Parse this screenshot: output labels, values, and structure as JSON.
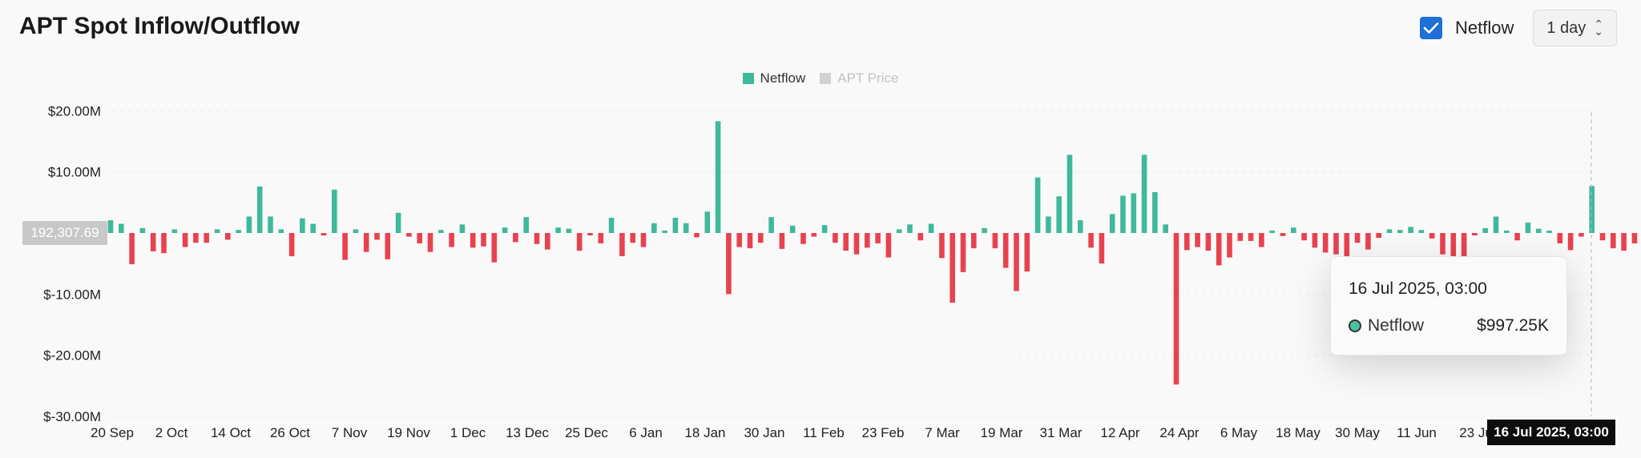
{
  "header": {
    "title": "APT Spot Inflow/Outflow",
    "checkbox_label": "Netflow",
    "interval": "1 day"
  },
  "legend": [
    {
      "label": "Netflow",
      "color": "#3fb99a"
    },
    {
      "label": "APT Price",
      "color": "#d2d2d2"
    }
  ],
  "current_value_badge": "192,307.69",
  "tooltip": {
    "date": "16 Jul 2025, 03:00",
    "series": "Netflow",
    "value": "$997.25K"
  },
  "crosshair_x_label": "16 Jul 2025, 03:00",
  "colors": {
    "positive": "#3fb99a",
    "negative": "#e8424f"
  },
  "chart_data": {
    "type": "bar",
    "title": "APT Spot Inflow/Outflow",
    "series": [
      {
        "name": "Netflow",
        "values": [
          2.1,
          1.5,
          -5.1,
          0.8,
          -3,
          -3.3,
          0.6,
          -2.3,
          -1.6,
          -1.6,
          0.6,
          -1.1,
          0.5,
          2.7,
          7.6,
          2.7,
          0.6,
          -3.8,
          2.4,
          1.5,
          -0.4,
          7.1,
          -4.4,
          0.6,
          -3.1,
          -1.1,
          -4.3,
          3.3,
          -0.6,
          -1.7,
          -3.1,
          0.5,
          -2.3,
          1.4,
          -2.4,
          -2.2,
          -4.8,
          0.9,
          -1.5,
          2.6,
          -1.8,
          -2.7,
          0.9,
          0.7,
          -2.9,
          -0.4,
          -1.7,
          2.5,
          -3.8,
          -1.6,
          -2.3,
          1.6,
          0.4,
          2.5,
          1.6,
          -0.7,
          3.5,
          18.3,
          -10,
          -2.3,
          -2.5,
          -1.6,
          2.6,
          -2.6,
          1.2,
          -1.8,
          -0.6,
          1.3,
          -1.6,
          -2.9,
          -3.5,
          -2.4,
          -1.7,
          -4,
          0.6,
          1.4,
          -1.2,
          1.5,
          -4.1,
          -11.4,
          -6.4,
          -2.5,
          0.8,
          -2.5,
          -5.7,
          -9.5,
          -6.3,
          9.1,
          2.7,
          6,
          12.8,
          2.1,
          -2.4,
          -5,
          3.1,
          6.1,
          6.5,
          12.8,
          6.7,
          1.4,
          -24.8,
          -2.8,
          -2.3,
          -2.9,
          -5.3,
          -4,
          -1.3,
          -1.3,
          -2.3,
          0.4,
          -0.5,
          0.9,
          -1.2,
          -2.4,
          -3.2,
          -3.5,
          -6.6,
          -1.6,
          -2.7,
          -0.8,
          0.6,
          0.5,
          1,
          0.5,
          -0.9,
          -3.5,
          -6.6,
          -4.3,
          -0.4,
          0.8,
          2.7,
          0.4,
          -1.2,
          1.7,
          0.7,
          0.4,
          -1.7,
          -2.8,
          -0.6,
          7.7,
          -1.2,
          -2.5,
          -2.9,
          -1.7,
          1.2,
          -4.8,
          -1.6,
          -0.5,
          1.7,
          -1.1,
          -0.6,
          -0.8,
          -0.7,
          0.4,
          5.1,
          0.7,
          -2.6,
          -2.6,
          -2.6,
          -1.8,
          -1.3,
          1.3,
          -1.2,
          -3.1,
          -2.6,
          -1.7,
          -2.2,
          -2.8,
          -2.6,
          -0.8,
          -0.9,
          0.6,
          -0.7,
          -0.9,
          -0.7,
          -0.5,
          -0.5,
          -0.5,
          -0.5,
          -0.5,
          -0.6,
          -1.4,
          -6.3,
          -0.6,
          -0.5,
          -1.1,
          -2.3,
          -2.9,
          -1.9,
          -2.4,
          -1.4,
          0.3,
          1.3,
          0.5,
          -1.7,
          -3.5,
          0.6,
          0.4,
          0.3,
          -1.1,
          -0.9,
          -0.9,
          -0.3,
          -0.4,
          -0.3,
          -0.3,
          -0.5,
          -0.4,
          0.3,
          0.5,
          -0.3,
          -0.8,
          -0.4,
          -0.3,
          -0.7,
          0.9,
          2.4,
          0.8,
          4.8,
          -2.4,
          0.5,
          1.6,
          -0.7,
          -3.1,
          -0.4,
          1.5,
          0.5,
          2.1,
          0.7,
          -4.2,
          0.6,
          -0.7,
          -0.6,
          -0.4,
          -1.8,
          -0.4,
          -0.6,
          -3.1,
          -0.7,
          -0.3,
          -0.4,
          0.4,
          -0.7,
          0.9,
          0.4,
          1.4,
          0.9,
          -0.3,
          1.2,
          -0.7,
          1.3,
          -1,
          -0.3,
          0.6,
          1.2,
          4.8,
          -0.7,
          -0.9,
          3.8,
          -0.9,
          -2.6,
          -3.1,
          -1.5,
          -3.7,
          -2,
          -1.6,
          -1.3,
          -0.8,
          -2.6,
          -1.4,
          -1.6,
          -0.8,
          -0.3,
          -0.5,
          -0.4,
          1,
          0.8,
          -0.4,
          -0.3,
          -0.8,
          -0.7,
          -0.3,
          1
        ]
      }
    ],
    "x_tick_labels": [
      "20 Sep",
      "2 Oct",
      "14 Oct",
      "26 Oct",
      "7 Nov",
      "19 Nov",
      "1 Dec",
      "13 Dec",
      "25 Dec",
      "6 Jan",
      "18 Jan",
      "30 Jan",
      "11 Feb",
      "23 Feb",
      "7 Mar",
      "19 Mar",
      "31 Mar",
      "12 Apr",
      "24 Apr",
      "6 May",
      "18 May",
      "30 May",
      "11 Jun",
      "23 Ju"
    ],
    "y_tick_labels": [
      "$20.00M",
      "$10.00M",
      "$-10.00M",
      "$-20.00M",
      "$-30.00M"
    ],
    "y_ticks": [
      20,
      10,
      -10,
      -20,
      -30
    ],
    "ylim": [
      -30,
      20
    ],
    "unit": "M",
    "grid": true
  }
}
